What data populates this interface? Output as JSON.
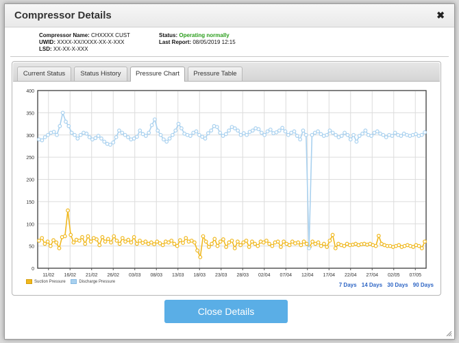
{
  "dialog": {
    "title": "Compressor Details",
    "close_glyph": "✖",
    "close_button": "Close Details"
  },
  "info": {
    "name_label": "Compressor Name:",
    "name_value": "CHXXXX CUST",
    "uwid_label": "UWID:",
    "uwid_value": "XXXX-XX/XXXX-XX-X-XXX",
    "lsd_label": "LSD:",
    "lsd_value": "XX-XX-X-XXX",
    "status_label": "Status:",
    "status_value": "Operating normally",
    "report_label": "Last Report:",
    "report_value": "08/05/2019 12:15",
    "status_color": "#2a9d1b"
  },
  "tabs": [
    {
      "label": "Current Status",
      "active": false
    },
    {
      "label": "Status History",
      "active": false
    },
    {
      "label": "Pressure Chart",
      "active": true
    },
    {
      "label": "Pressure Table",
      "active": false
    }
  ],
  "ranges": [
    "7 Days",
    "14 Days",
    "30 Days",
    "90 Days"
  ],
  "chart_data": {
    "type": "line",
    "x_ticks": [
      "11/02",
      "16/02",
      "21/02",
      "26/02",
      "03/03",
      "08/03",
      "13/03",
      "18/03",
      "23/03",
      "28/03",
      "02/04",
      "07/04",
      "12/04",
      "17/04",
      "22/04",
      "27/04",
      "02/05",
      "07/05"
    ],
    "y_ticks": [
      0,
      50,
      100,
      150,
      200,
      250,
      300,
      350,
      400
    ],
    "ylim": [
      0,
      400
    ],
    "grid": true,
    "legend_position": "bottom-left",
    "series": [
      {
        "name": "Suction Pressure",
        "color": "#f0b81e",
        "values": [
          62,
          68,
          55,
          60,
          50,
          63,
          58,
          45,
          70,
          72,
          130,
          75,
          58,
          64,
          62,
          70,
          55,
          72,
          60,
          68,
          65,
          52,
          70,
          60,
          66,
          58,
          72,
          62,
          55,
          68,
          60,
          64,
          58,
          70,
          55,
          62,
          57,
          60,
          55,
          58,
          54,
          60,
          56,
          52,
          60,
          58,
          62,
          55,
          50,
          63,
          57,
          68,
          60,
          62,
          58,
          40,
          25,
          72,
          60,
          48,
          55,
          66,
          50,
          60,
          65,
          48,
          58,
          62,
          45,
          60,
          52,
          58,
          62,
          48,
          60,
          55,
          50,
          60,
          58,
          62,
          55,
          50,
          58,
          60,
          48,
          60,
          55,
          52,
          60,
          56,
          58,
          52,
          60,
          55,
          48,
          60,
          55,
          58,
          50,
          55,
          48,
          62,
          75,
          45,
          55,
          52,
          50,
          55,
          52,
          53,
          55,
          52,
          54,
          55,
          53,
          55,
          52,
          50,
          73,
          55,
          52,
          50,
          50,
          48,
          50,
          52,
          48,
          50,
          52,
          50,
          48,
          52,
          50,
          45,
          60
        ]
      },
      {
        "name": "Discharge Pressure",
        "color": "#a9d1ef",
        "values": [
          290,
          288,
          295,
          300,
          305,
          307,
          300,
          320,
          350,
          330,
          320,
          305,
          300,
          292,
          300,
          305,
          303,
          295,
          290,
          293,
          298,
          292,
          285,
          280,
          278,
          283,
          295,
          310,
          305,
          300,
          295,
          290,
          292,
          296,
          310,
          302,
          298,
          305,
          322,
          335,
          310,
          300,
          290,
          285,
          292,
          300,
          310,
          325,
          315,
          303,
          300,
          298,
          305,
          308,
          300,
          296,
          292,
          304,
          310,
          320,
          318,
          305,
          298,
          302,
          310,
          318,
          315,
          310,
          300,
          304,
          300,
          307,
          310,
          315,
          313,
          305,
          300,
          308,
          312,
          304,
          306,
          310,
          316,
          308,
          300,
          305,
          308,
          298,
          290,
          310,
          300,
          45,
          300,
          305,
          308,
          302,
          298,
          300,
          310,
          305,
          300,
          295,
          298,
          305,
          300,
          290,
          300,
          285,
          298,
          303,
          310,
          300,
          298,
          305,
          308,
          303,
          300,
          295,
          300,
          298,
          305,
          300,
          298,
          303,
          300,
          298,
          300,
          302,
          298,
          300,
          306
        ]
      }
    ]
  }
}
